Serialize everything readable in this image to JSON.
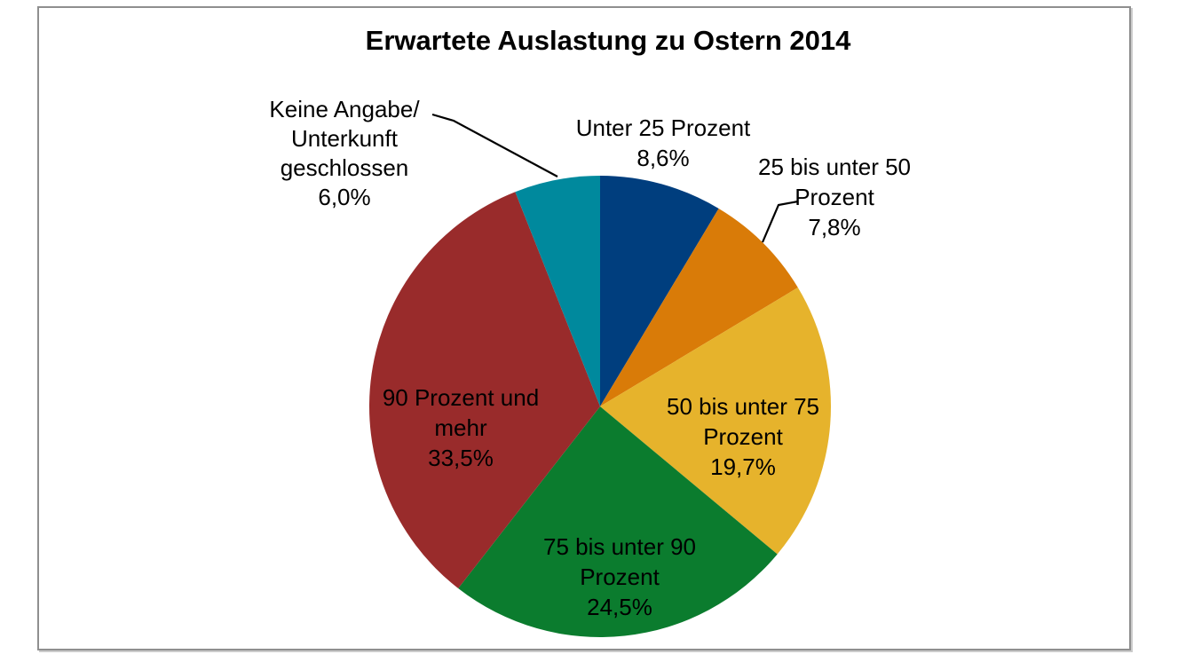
{
  "chart_data": {
    "type": "pie",
    "title": "Erwartete Auslastung zu Ostern 2014",
    "unit": "%",
    "start_angle_deg": 0,
    "direction": "clockwise",
    "legend_position": "none",
    "labels_style": "outside-and-inside-callouts",
    "categories": [
      "Unter 25 Prozent",
      "25 bis unter 50 Prozent",
      "50 bis unter 75 Prozent",
      "75 bis unter 90 Prozent",
      "90 Prozent und mehr",
      "Keine Angabe/Unterkunft geschlossen"
    ],
    "values": [
      8.6,
      7.8,
      19.7,
      24.5,
      33.5,
      6.0
    ],
    "segments": [
      {
        "name": "unter-25-prozent",
        "label": "Unter 25 Prozent",
        "value": 8.6,
        "value_text": "8,6%",
        "color": "#003e7e",
        "label_lines": [
          "Unter 25 Prozent",
          "8,6%"
        ]
      },
      {
        "name": "25-bis-unter-50-prozent",
        "label": "25 bis unter 50 Prozent",
        "value": 7.8,
        "value_text": "7,8%",
        "color": "#d97b08",
        "label_lines": [
          "25 bis unter 50",
          "Prozent",
          "7,8%"
        ]
      },
      {
        "name": "50-bis-unter-75-prozent",
        "label": "50 bis unter 75 Prozent",
        "value": 19.7,
        "value_text": "19,7%",
        "color": "#e6b32c",
        "label_lines": [
          "50 bis unter 75",
          "Prozent",
          "19,7%"
        ]
      },
      {
        "name": "75-bis-unter-90-prozent",
        "label": "75 bis unter 90 Prozent",
        "value": 24.5,
        "value_text": "24,5%",
        "color": "#0b7c2e",
        "label_lines": [
          "75 bis unter 90",
          "Prozent",
          "24,5%"
        ]
      },
      {
        "name": "90-prozent-und-mehr",
        "label": "90 Prozent und mehr",
        "value": 33.5,
        "value_text": "33,5%",
        "color": "#992b2b",
        "label_lines": [
          "90 Prozent und",
          "mehr",
          "33,5%"
        ]
      },
      {
        "name": "keine-angabe-unterkunft-geschlossen",
        "label": "Keine Angabe/Unterkunft geschlossen",
        "value": 6.0,
        "value_text": "6,0%",
        "color": "#00899d",
        "label_lines": [
          "Keine Angabe/",
          "Unterkunft",
          "geschlossen",
          "6,0%"
        ]
      }
    ],
    "text_color": "#000000",
    "leader_line_color": "#000000",
    "frame_border_color": "#8f8f8f"
  }
}
